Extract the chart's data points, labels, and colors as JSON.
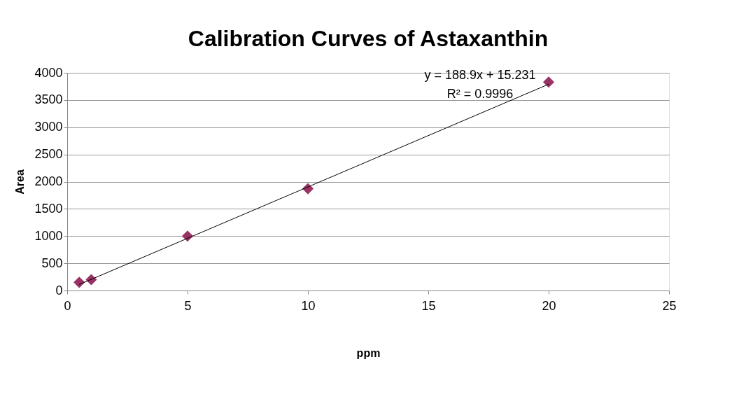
{
  "chart_data": {
    "type": "scatter",
    "title": "Calibration Curves of Astaxanthin",
    "xlabel": "ppm",
    "ylabel": "Area",
    "x": [
      0.5,
      1,
      5,
      10,
      20
    ],
    "series": [
      {
        "color": "#993366",
        "marker": "diamond",
        "values": [
          150,
          200,
          1000,
          1870,
          3830
        ]
      },
      {
        "type": "line",
        "color": "#000000",
        "x": [
          0.5,
          20
        ],
        "values": [
          110,
          3790
        ]
      }
    ],
    "annotations": [
      "y = 188.9x + 15.231",
      "R² = 0.9996"
    ],
    "xlim": [
      0,
      25
    ],
    "xticks": [
      0,
      5,
      10,
      15,
      20,
      25
    ],
    "ylim": [
      0,
      4000
    ],
    "yticks": [
      0,
      500,
      1000,
      1500,
      2000,
      2500,
      3000,
      3500,
      4000
    ],
    "grid": "y"
  }
}
